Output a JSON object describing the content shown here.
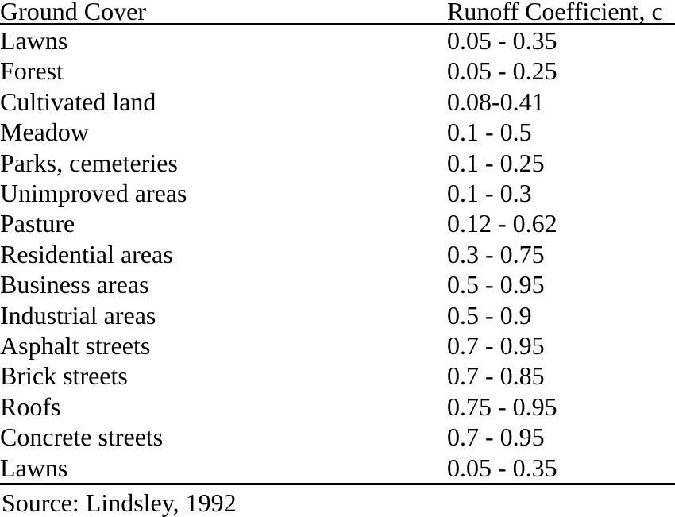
{
  "table": {
    "columns": [
      "Ground Cover",
      "Runoff Coefficient, c"
    ],
    "rows": [
      {
        "cover": "Lawns",
        "coefficient": "0.05 - 0.35"
      },
      {
        "cover": "Forest",
        "coefficient": "0.05 - 0.25"
      },
      {
        "cover": "Cultivated land",
        "coefficient": "0.08-0.41"
      },
      {
        "cover": "Meadow",
        "coefficient": "0.1 - 0.5"
      },
      {
        "cover": "Parks, cemeteries",
        "coefficient": "0.1 - 0.25"
      },
      {
        "cover": "Unimproved areas",
        "coefficient": "0.1 - 0.3"
      },
      {
        "cover": "Pasture",
        "coefficient": "0.12 - 0.62"
      },
      {
        "cover": "Residential areas",
        "coefficient": "0.3 - 0.75"
      },
      {
        "cover": "Business areas",
        "coefficient": "0.5 - 0.95"
      },
      {
        "cover": "Industrial areas",
        "coefficient": "0.5 - 0.9"
      },
      {
        "cover": "Asphalt streets",
        "coefficient": "0.7 - 0.95"
      },
      {
        "cover": "Brick streets",
        "coefficient": "0.7 - 0.85"
      },
      {
        "cover": "Roofs",
        "coefficient": "0.75 - 0.95"
      },
      {
        "cover": "Concrete streets",
        "coefficient": "0.7 - 0.95"
      },
      {
        "cover": "Lawns",
        "coefficient": "0.05 - 0.35"
      }
    ]
  },
  "source_note": "Source: Lindsley, 1992",
  "colors": {
    "text": "#000000",
    "background": "#ffffff",
    "rule": "#000000"
  }
}
